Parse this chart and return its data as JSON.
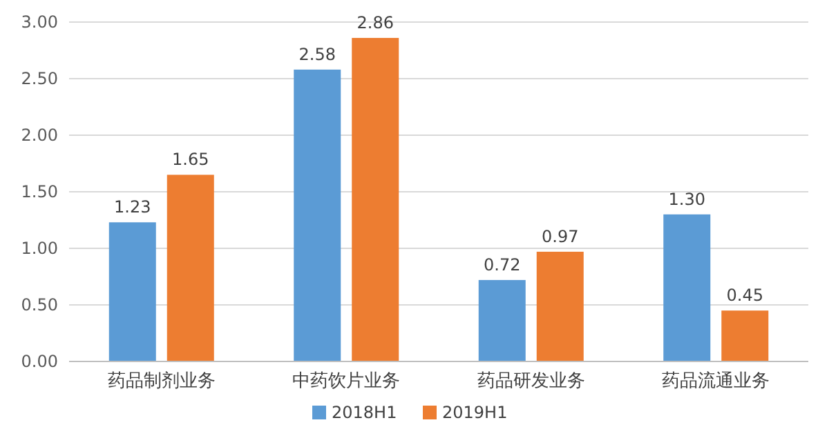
{
  "chart_data": {
    "type": "bar",
    "categories": [
      "药品制剂业务",
      "中药饮片业务",
      "药品研发业务",
      "药品流通业务"
    ],
    "series": [
      {
        "name": "2018H1",
        "color": "#5b9bd5",
        "values": [
          1.23,
          2.58,
          0.72,
          1.3
        ],
        "value_labels": [
          "1.23",
          "2.58",
          "0.72",
          "1.30"
        ]
      },
      {
        "name": "2019H1",
        "color": "#ed7d31",
        "values": [
          1.65,
          2.86,
          0.97,
          0.45
        ],
        "value_labels": [
          "1.65",
          "2.86",
          "0.97",
          "0.45"
        ]
      }
    ],
    "ylim": [
      0,
      3
    ],
    "yticks": [
      {
        "value": 0,
        "label": "0.00"
      },
      {
        "value": 0.5,
        "label": "0.50"
      },
      {
        "value": 1,
        "label": "1.00"
      },
      {
        "value": 1.5,
        "label": "1.50"
      },
      {
        "value": 2,
        "label": "2.00"
      },
      {
        "value": 2.5,
        "label": "2.50"
      },
      {
        "value": 3,
        "label": "3.00"
      }
    ],
    "grid": "y",
    "legend": "bottom"
  }
}
